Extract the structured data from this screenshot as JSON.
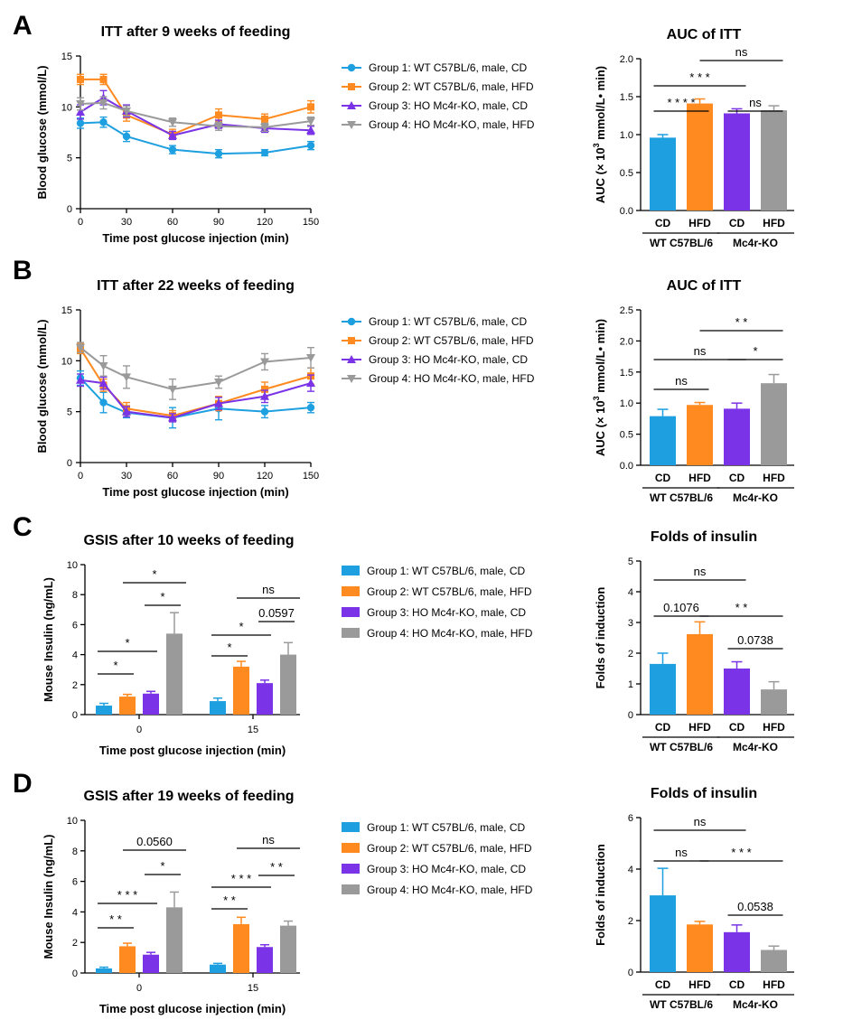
{
  "colors": {
    "g1": "#1E9FE0",
    "g2": "#FF8A1F",
    "g3": "#7A33E6",
    "g4": "#9A9A9A"
  },
  "legend": [
    "Group 1: WT C57BL/6, male, CD",
    "Group 2: WT C57BL/6, male, HFD",
    "Group 3: HO Mc4r-KO, male, CD",
    "Group 4: HO Mc4r-KO, male, HFD"
  ],
  "groups_cat": [
    "CD",
    "HFD",
    "CD",
    "HFD"
  ],
  "strain_labels": [
    "WT C57BL/6",
    "Mc4r-KO"
  ],
  "chart_data": [
    {
      "id": "A-line",
      "panel": "A",
      "type": "line",
      "title": "ITT after 9 weeks of feeding",
      "xlabel": "Time post glucose injection (min)",
      "ylabel": "Blood glucose (mmol/L)",
      "x": [
        0,
        15,
        30,
        60,
        90,
        120,
        150
      ],
      "xlim": [
        0,
        150
      ],
      "ylim": [
        0,
        15
      ],
      "xticks": [
        0,
        30,
        60,
        90,
        120,
        150
      ],
      "yticks": [
        0,
        5,
        10,
        15
      ],
      "series": [
        {
          "name": "Group 1: WT C57BL/6, male, CD",
          "values": [
            8.4,
            8.5,
            7.1,
            5.8,
            5.4,
            5.5,
            6.2
          ],
          "err": [
            0.5,
            0.5,
            0.5,
            0.4,
            0.4,
            0.3,
            0.4
          ]
        },
        {
          "name": "Group 2: WT C57BL/6, male, HFD",
          "values": [
            12.7,
            12.7,
            9.2,
            7.3,
            9.2,
            8.8,
            10.0
          ],
          "err": [
            0.5,
            0.5,
            0.6,
            0.5,
            0.6,
            0.5,
            0.6
          ]
        },
        {
          "name": "Group 3: HO Mc4r-KO, male, CD",
          "values": [
            9.5,
            10.9,
            9.6,
            7.2,
            8.3,
            7.9,
            7.7
          ],
          "err": [
            0.7,
            0.7,
            0.6,
            0.4,
            0.4,
            0.4,
            0.4
          ]
        },
        {
          "name": "Group 4: HO Mc4r-KO, male, HFD",
          "values": [
            10.3,
            10.4,
            9.6,
            8.5,
            8.1,
            8.0,
            8.6
          ],
          "err": [
            0.6,
            0.6,
            0.5,
            0.4,
            0.4,
            0.4,
            0.4
          ]
        }
      ]
    },
    {
      "id": "A-bar",
      "panel": "A",
      "type": "bar",
      "title": "AUC of ITT",
      "ylabel": "AUC (× 10^3 mmol/L• min)",
      "categories": [
        "CD",
        "HFD",
        "CD",
        "HFD"
      ],
      "values": [
        0.96,
        1.41,
        1.28,
        1.32
      ],
      "err": [
        0.04,
        0.06,
        0.06,
        0.06
      ],
      "ylim": [
        0,
        2.0
      ],
      "yticks": [
        "0.0",
        "0.5",
        "1.0",
        "1.5",
        "2.0"
      ],
      "sig": [
        {
          "from": 0,
          "to": 1,
          "label": "****"
        },
        {
          "from": 0,
          "to": 2,
          "label": "***"
        },
        {
          "from": 2,
          "to": 3,
          "label": "ns"
        },
        {
          "from": 1,
          "to": 3,
          "label": "ns"
        }
      ]
    },
    {
      "id": "B-line",
      "panel": "B",
      "type": "line",
      "title": "ITT after 22 weeks of feeding",
      "xlabel": "Time post glucose injection (min)",
      "ylabel": "Blood glucose (mmol/L)",
      "x": [
        0,
        15,
        30,
        60,
        90,
        120,
        150
      ],
      "xlim": [
        0,
        150
      ],
      "ylim": [
        0,
        15
      ],
      "xticks": [
        0,
        30,
        60,
        90,
        120,
        150
      ],
      "yticks": [
        0,
        5,
        10,
        15
      ],
      "series": [
        {
          "name": "Group 1: WT C57BL/6, male, CD",
          "values": [
            8.3,
            5.9,
            4.9,
            4.4,
            5.3,
            5.0,
            5.4
          ],
          "err": [
            0.7,
            1.0,
            0.5,
            1.0,
            1.1,
            0.6,
            0.5
          ]
        },
        {
          "name": "Group 2: WT C57BL/6, male, HFD",
          "values": [
            11.2,
            7.6,
            5.3,
            4.6,
            5.8,
            7.2,
            8.5
          ],
          "err": [
            0.5,
            0.6,
            0.6,
            0.5,
            0.7,
            0.7,
            0.8
          ]
        },
        {
          "name": "Group 3: HO Mc4r-KO, male, CD",
          "values": [
            8.1,
            7.8,
            5.0,
            4.4,
            5.8,
            6.5,
            7.8
          ],
          "err": [
            0.6,
            0.6,
            0.5,
            0.4,
            0.6,
            0.6,
            0.8
          ]
        },
        {
          "name": "Group 4: HO Mc4r-KO, male, HFD",
          "values": [
            11.3,
            9.5,
            8.4,
            7.2,
            7.9,
            9.9,
            10.3
          ],
          "err": [
            0.5,
            1.0,
            1.1,
            1.0,
            0.6,
            0.8,
            1.0
          ]
        }
      ]
    },
    {
      "id": "B-bar",
      "panel": "B",
      "type": "bar",
      "title": "AUC of ITT",
      "ylabel": "AUC (× 10^3 mmol/L• min)",
      "categories": [
        "CD",
        "HFD",
        "CD",
        "HFD"
      ],
      "values": [
        0.79,
        0.97,
        0.91,
        1.32
      ],
      "err": [
        0.11,
        0.04,
        0.09,
        0.14
      ],
      "ylim": [
        0,
        2.5
      ],
      "yticks": [
        "0.0",
        "0.5",
        "1.0",
        "1.5",
        "2.0",
        "2.5"
      ],
      "sig": [
        {
          "from": 0,
          "to": 1,
          "label": "ns"
        },
        {
          "from": 0,
          "to": 2,
          "label": "ns"
        },
        {
          "from": 2,
          "to": 3,
          "label": "*"
        },
        {
          "from": 1,
          "to": 3,
          "label": "**"
        }
      ]
    },
    {
      "id": "C-bar",
      "panel": "C",
      "type": "bar",
      "title": "GSIS after 10 weeks of feeding",
      "xlabel": "Time post glucose injection (min)",
      "ylabel": "Mouse Insulin (ng/mL)",
      "categories": [
        "0",
        "15"
      ],
      "ylim": [
        0,
        10
      ],
      "yticks": [
        0,
        2,
        4,
        6,
        8,
        10
      ],
      "series": [
        {
          "name": "Group 1: WT C57BL/6, male, CD",
          "values": [
            0.6,
            0.9
          ],
          "err": [
            0.15,
            0.2
          ]
        },
        {
          "name": "Group 2: WT C57BL/6, male, HFD",
          "values": [
            1.2,
            3.2
          ],
          "err": [
            0.15,
            0.35
          ]
        },
        {
          "name": "Group 3: HO Mc4r-KO, male, CD",
          "values": [
            1.4,
            2.1
          ],
          "err": [
            0.15,
            0.2
          ]
        },
        {
          "name": "Group 4: HO Mc4r-KO, male, HFD",
          "values": [
            5.4,
            4.0
          ],
          "err": [
            1.4,
            0.8
          ]
        }
      ],
      "sig": [
        {
          "cat": 0,
          "from": 0,
          "to": 1,
          "label": "*"
        },
        {
          "cat": 0,
          "from": 0,
          "to": 2,
          "label": "*"
        },
        {
          "cat": 0,
          "from": 2,
          "to": 3,
          "label": "*"
        },
        {
          "cat": 0,
          "from": 1,
          "to": 3,
          "label": "*"
        },
        {
          "cat": 1,
          "from": 0,
          "to": 1,
          "label": "*"
        },
        {
          "cat": 1,
          "from": 0,
          "to": 2,
          "label": "*"
        },
        {
          "cat": 1,
          "from": 2,
          "to": 3,
          "label": "0.0597"
        },
        {
          "cat": 1,
          "from": 1,
          "to": 3,
          "label": "ns"
        }
      ]
    },
    {
      "id": "C-fold",
      "panel": "C",
      "type": "bar",
      "title": "Folds of insulin",
      "ylabel": "Folds of induction",
      "categories": [
        "CD",
        "HFD",
        "CD",
        "HFD"
      ],
      "values": [
        1.65,
        2.62,
        1.5,
        0.82
      ],
      "err": [
        0.35,
        0.4,
        0.22,
        0.25
      ],
      "ylim": [
        0,
        5
      ],
      "yticks": [
        "0",
        "1",
        "2",
        "3",
        "4",
        "5"
      ],
      "sig": [
        {
          "from": 0,
          "to": 1,
          "label": "0.1076"
        },
        {
          "from": 0,
          "to": 2,
          "label": "ns"
        },
        {
          "from": 2,
          "to": 3,
          "label": "0.0738"
        },
        {
          "from": 1,
          "to": 3,
          "label": "**"
        }
      ]
    },
    {
      "id": "D-bar",
      "panel": "D",
      "type": "bar",
      "title": "GSIS after 19 weeks of feeding",
      "xlabel": "Time post glucose injection (min)",
      "ylabel": "Mouse Insulin (ng/mL)",
      "categories": [
        "0",
        "15"
      ],
      "ylim": [
        0,
        10
      ],
      "yticks": [
        0,
        2,
        4,
        6,
        8,
        10
      ],
      "series": [
        {
          "name": "Group 1: WT C57BL/6, male, CD",
          "values": [
            0.3,
            0.55
          ],
          "err": [
            0.08,
            0.08
          ]
        },
        {
          "name": "Group 2: WT C57BL/6, male, HFD",
          "values": [
            1.75,
            3.2
          ],
          "err": [
            0.2,
            0.45
          ]
        },
        {
          "name": "Group 3: HO Mc4r-KO, male, CD",
          "values": [
            1.2,
            1.7
          ],
          "err": [
            0.15,
            0.15
          ]
        },
        {
          "name": "Group 4: HO Mc4r-KO, male, HFD",
          "values": [
            4.3,
            3.1
          ],
          "err": [
            1.0,
            0.3
          ]
        }
      ],
      "sig": [
        {
          "cat": 0,
          "from": 0,
          "to": 1,
          "label": "**"
        },
        {
          "cat": 0,
          "from": 0,
          "to": 2,
          "label": "***"
        },
        {
          "cat": 0,
          "from": 2,
          "to": 3,
          "label": "*"
        },
        {
          "cat": 0,
          "from": 1,
          "to": 3,
          "label": "0.0560"
        },
        {
          "cat": 1,
          "from": 0,
          "to": 1,
          "label": "**"
        },
        {
          "cat": 1,
          "from": 0,
          "to": 2,
          "label": "***"
        },
        {
          "cat": 1,
          "from": 2,
          "to": 3,
          "label": "**"
        },
        {
          "cat": 1,
          "from": 1,
          "to": 3,
          "label": "ns"
        }
      ]
    },
    {
      "id": "D-fold",
      "panel": "D",
      "type": "bar",
      "title": "Folds of insulin",
      "ylabel": "Folds of induction",
      "categories": [
        "CD",
        "HFD",
        "CD",
        "HFD"
      ],
      "values": [
        2.98,
        1.85,
        1.55,
        0.86
      ],
      "err": [
        1.05,
        0.12,
        0.28,
        0.15
      ],
      "ylim": [
        0,
        6
      ],
      "yticks": [
        "0",
        "2",
        "4",
        "6"
      ],
      "sig": [
        {
          "from": 0,
          "to": 1,
          "label": "ns"
        },
        {
          "from": 0,
          "to": 2,
          "label": "ns"
        },
        {
          "from": 2,
          "to": 3,
          "label": "0.0538"
        },
        {
          "from": 1,
          "to": 3,
          "label": "***"
        }
      ]
    }
  ]
}
